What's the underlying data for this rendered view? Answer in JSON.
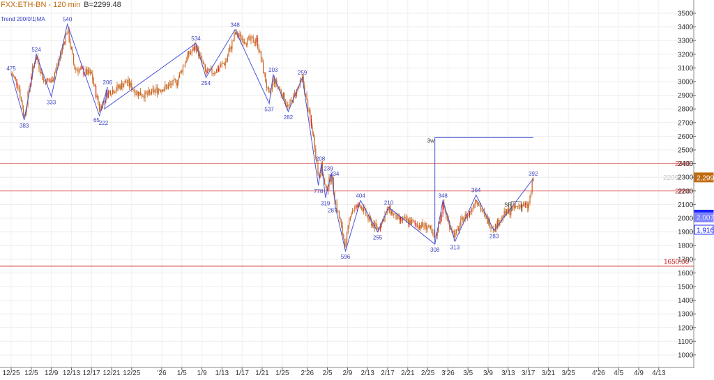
{
  "header": {
    "symbol": "FXX:ETH-BN",
    "interval": "- 120 min",
    "last_value": "B=2299.48",
    "study_label": "Trend 200/0/1|MA"
  },
  "colors": {
    "background": "#ffffff",
    "candle": "#c8641e",
    "candle_highlight": "#e01010",
    "zigzag": "#4a55d8",
    "level_line": "#e05050",
    "support_line": "#cc2020",
    "axis_text": "#333333",
    "price_tag_orange": "#c06a10",
    "price_tag_blue": "#1c24ff"
  },
  "chart_data": {
    "type": "line",
    "title": "",
    "xlabel": "",
    "ylabel": "",
    "ylim": [
      1000,
      3600
    ],
    "y_ticks": [
      1000,
      1100,
      1200,
      1300,
      1400,
      1500,
      1600,
      1700,
      1800,
      1900,
      2000,
      2100,
      2200,
      2300,
      2400,
      2500,
      2600,
      2700,
      2800,
      2900,
      3000,
      3100,
      3200,
      3300,
      3400,
      3500
    ],
    "x_ticks": [
      "12/25",
      "12/5",
      "12/9",
      "12/13",
      "12/17",
      "12/21",
      "12/25",
      "'26",
      "1/5",
      "1/9",
      "1/13",
      "1/17",
      "1/21",
      "1/25",
      "2'26",
      "2/5",
      "2/9",
      "2/13",
      "2/17",
      "2/21",
      "2/25",
      "3'26",
      "3/5",
      "3/9",
      "3/13",
      "3/17",
      "3/21",
      "3/25",
      "4'26",
      "4/5",
      "4/9",
      "4/13"
    ],
    "x_tick_index": [
      0,
      2,
      4,
      6,
      8,
      10,
      12,
      15,
      17,
      19,
      21,
      23,
      25,
      27,
      29.5,
      31.5,
      33.5,
      35.5,
      37.5,
      39.5,
      41.5,
      43.5,
      45.5,
      47.5,
      49.5,
      51.5,
      53.5,
      55.5,
      58.5,
      60.5,
      62.5,
      64.5
    ],
    "grid": true,
    "series": [
      {
        "type": "zigzag",
        "points": [
          {
            "x": 0.0,
            "y": 3060
          },
          {
            "x": 1.3,
            "y": 2720
          },
          {
            "x": 2.5,
            "y": 3200
          },
          {
            "x": 4.0,
            "y": 2890
          },
          {
            "x": 5.6,
            "y": 3420
          },
          {
            "x": 8.8,
            "y": 2750
          },
          {
            "x": 9.6,
            "y": 2960
          },
          {
            "x": 9.3,
            "y": 2800
          },
          {
            "x": 18.4,
            "y": 3280
          },
          {
            "x": 19.4,
            "y": 3030
          },
          {
            "x": 22.3,
            "y": 3380
          },
          {
            "x": 25.7,
            "y": 2840
          },
          {
            "x": 26.1,
            "y": 3050
          },
          {
            "x": 27.6,
            "y": 2780
          },
          {
            "x": 29.0,
            "y": 3030
          },
          {
            "x": 30.6,
            "y": 2240
          },
          {
            "x": 30.9,
            "y": 2400
          },
          {
            "x": 31.3,
            "y": 2150
          },
          {
            "x": 31.9,
            "y": 2330
          },
          {
            "x": 32.3,
            "y": 2080
          },
          {
            "x": 33.3,
            "y": 1760
          },
          {
            "x": 34.8,
            "y": 2130
          },
          {
            "x": 36.5,
            "y": 1900
          },
          {
            "x": 37.6,
            "y": 2080
          },
          {
            "x": 42.2,
            "y": 1810
          },
          {
            "x": 43.0,
            "y": 2130
          },
          {
            "x": 44.2,
            "y": 1830
          },
          {
            "x": 46.3,
            "y": 2170
          },
          {
            "x": 48.1,
            "y": 1910
          },
          {
            "x": 52.0,
            "y": 2290
          }
        ]
      },
      {
        "type": "candles",
        "anchors": [
          {
            "x": 0.0,
            "y": 3060
          },
          {
            "x": 0.7,
            "y": 2980
          },
          {
            "x": 1.3,
            "y": 2730
          },
          {
            "x": 2.0,
            "y": 3050
          },
          {
            "x": 2.5,
            "y": 3190
          },
          {
            "x": 3.2,
            "y": 3010
          },
          {
            "x": 4.0,
            "y": 3000
          },
          {
            "x": 4.6,
            "y": 3120
          },
          {
            "x": 5.6,
            "y": 3380
          },
          {
            "x": 6.3,
            "y": 3100
          },
          {
            "x": 7.0,
            "y": 3080
          },
          {
            "x": 8.0,
            "y": 3050
          },
          {
            "x": 8.8,
            "y": 2800
          },
          {
            "x": 9.6,
            "y": 2920
          },
          {
            "x": 10.5,
            "y": 2950
          },
          {
            "x": 11.5,
            "y": 3000
          },
          {
            "x": 12.5,
            "y": 2920
          },
          {
            "x": 13.5,
            "y": 2900
          },
          {
            "x": 14.5,
            "y": 2940
          },
          {
            "x": 15.5,
            "y": 2960
          },
          {
            "x": 16.5,
            "y": 3000
          },
          {
            "x": 17.5,
            "y": 3180
          },
          {
            "x": 18.4,
            "y": 3260
          },
          {
            "x": 19.4,
            "y": 3060
          },
          {
            "x": 20.4,
            "y": 3080
          },
          {
            "x": 21.4,
            "y": 3150
          },
          {
            "x": 22.3,
            "y": 3350
          },
          {
            "x": 23.3,
            "y": 3300
          },
          {
            "x": 24.5,
            "y": 3300
          },
          {
            "x": 25.0,
            "y": 3120
          },
          {
            "x": 25.7,
            "y": 2880
          },
          {
            "x": 26.1,
            "y": 3020
          },
          {
            "x": 26.9,
            "y": 2920
          },
          {
            "x": 27.6,
            "y": 2810
          },
          {
            "x": 28.2,
            "y": 2900
          },
          {
            "x": 29.0,
            "y": 3020
          },
          {
            "x": 29.7,
            "y": 2750
          },
          {
            "x": 30.2,
            "y": 2550
          },
          {
            "x": 30.6,
            "y": 2300
          },
          {
            "x": 30.9,
            "y": 2380
          },
          {
            "x": 31.3,
            "y": 2200
          },
          {
            "x": 31.9,
            "y": 2320
          },
          {
            "x": 32.3,
            "y": 2120
          },
          {
            "x": 33.3,
            "y": 1790
          },
          {
            "x": 33.8,
            "y": 2050
          },
          {
            "x": 34.8,
            "y": 2100
          },
          {
            "x": 35.6,
            "y": 1990
          },
          {
            "x": 36.5,
            "y": 1920
          },
          {
            "x": 37.6,
            "y": 2070
          },
          {
            "x": 38.5,
            "y": 1990
          },
          {
            "x": 39.5,
            "y": 1980
          },
          {
            "x": 40.5,
            "y": 1950
          },
          {
            "x": 41.5,
            "y": 1940
          },
          {
            "x": 42.2,
            "y": 1840
          },
          {
            "x": 43.0,
            "y": 2090
          },
          {
            "x": 43.6,
            "y": 1960
          },
          {
            "x": 44.2,
            "y": 1870
          },
          {
            "x": 45.0,
            "y": 2000
          },
          {
            "x": 45.6,
            "y": 2030
          },
          {
            "x": 46.3,
            "y": 2150
          },
          {
            "x": 47.2,
            "y": 2000
          },
          {
            "x": 48.1,
            "y": 1930
          },
          {
            "x": 49.0,
            "y": 2020
          },
          {
            "x": 50.0,
            "y": 2070
          },
          {
            "x": 50.8,
            "y": 2100
          },
          {
            "x": 51.5,
            "y": 2080
          },
          {
            "x": 52.0,
            "y": 2290
          }
        ]
      }
    ],
    "pivot_labels": [
      {
        "text": "475",
        "x": 0.0,
        "y": 3060,
        "pos": "above"
      },
      {
        "text": "383",
        "x": 1.3,
        "y": 2720,
        "pos": "below"
      },
      {
        "text": "524",
        "x": 2.5,
        "y": 3200,
        "pos": "above"
      },
      {
        "text": "333",
        "x": 4.0,
        "y": 2890,
        "pos": "below"
      },
      {
        "text": "540",
        "x": 5.6,
        "y": 3420,
        "pos": "above"
      },
      {
        "text": "65",
        "x": 8.5,
        "y": 2760,
        "pos": "below"
      },
      {
        "text": "222",
        "x": 9.2,
        "y": 2740,
        "pos": "below"
      },
      {
        "text": "206",
        "x": 9.6,
        "y": 2960,
        "pos": "above"
      },
      {
        "text": "534",
        "x": 18.4,
        "y": 3280,
        "pos": "above"
      },
      {
        "text": "254",
        "x": 19.4,
        "y": 3030,
        "pos": "below"
      },
      {
        "text": "348",
        "x": 22.3,
        "y": 3380,
        "pos": "above"
      },
      {
        "text": "537",
        "x": 25.7,
        "y": 2840,
        "pos": "below"
      },
      {
        "text": "203",
        "x": 26.1,
        "y": 3050,
        "pos": "above"
      },
      {
        "text": "282",
        "x": 27.6,
        "y": 2780,
        "pos": "below"
      },
      {
        "text": "259",
        "x": 29.0,
        "y": 3030,
        "pos": "above"
      },
      {
        "text": "208",
        "x": 30.8,
        "y": 2400,
        "pos": "above"
      },
      {
        "text": "778",
        "x": 30.6,
        "y": 2240,
        "pos": "below"
      },
      {
        "text": "239",
        "x": 31.6,
        "y": 2330,
        "pos": "above"
      },
      {
        "text": "234",
        "x": 32.2,
        "y": 2290,
        "pos": "above"
      },
      {
        "text": "319",
        "x": 31.3,
        "y": 2150,
        "pos": "below"
      },
      {
        "text": "287",
        "x": 32.0,
        "y": 2100,
        "pos": "below"
      },
      {
        "text": "596",
        "x": 33.3,
        "y": 1760,
        "pos": "below"
      },
      {
        "text": "404",
        "x": 34.8,
        "y": 2130,
        "pos": "above"
      },
      {
        "text": "255",
        "x": 36.5,
        "y": 1900,
        "pos": "below"
      },
      {
        "text": "210",
        "x": 37.6,
        "y": 2080,
        "pos": "above"
      },
      {
        "text": "308",
        "x": 42.2,
        "y": 1810,
        "pos": "below"
      },
      {
        "text": "348",
        "x": 43.0,
        "y": 2130,
        "pos": "above"
      },
      {
        "text": "313",
        "x": 44.2,
        "y": 1830,
        "pos": "below"
      },
      {
        "text": "364",
        "x": 46.3,
        "y": 2170,
        "pos": "above"
      },
      {
        "text": "283",
        "x": 48.1,
        "y": 1910,
        "pos": "below"
      },
      {
        "text": "392",
        "x": 52.0,
        "y": 2290,
        "pos": "above"
      }
    ],
    "horizontal_levels": [
      {
        "value": 2400,
        "label": "2400",
        "style": "resistance"
      },
      {
        "value": 2200,
        "label": "2200",
        "style": "resistance"
      },
      {
        "value": 1650,
        "label": "1650.00",
        "style": "support"
      }
    ],
    "annotations": [
      {
        "text": "3w",
        "x": 42.2,
        "y_from": 1810,
        "y_to": 2590,
        "x_end": 52.0
      },
      {
        "text": "SR",
        "x": 49.8,
        "y": 2120,
        "y_from": 2050,
        "x_end": 50.8
      }
    ],
    "price_tags": [
      {
        "text": "2,299",
        "value": 2299,
        "color": "orange"
      },
      {
        "text": "2,026",
        "value": 2026,
        "color": "blue"
      },
      {
        "text": "2,007",
        "value": 2007,
        "color": "blue_faint"
      },
      {
        "text": "1,916",
        "value": 1916,
        "color": "blue_outline"
      }
    ],
    "ghost_label": "2209"
  }
}
